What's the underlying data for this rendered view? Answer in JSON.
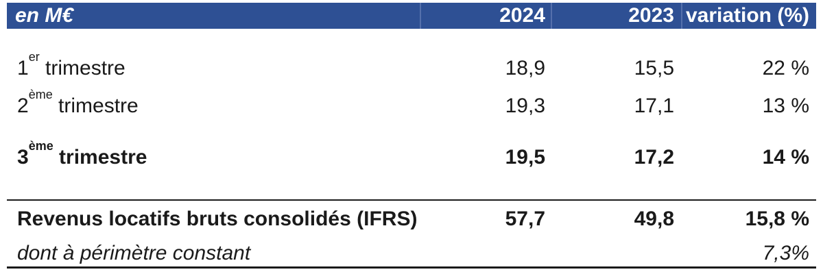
{
  "header": {
    "unit_label": "en M€",
    "col_2024": "2024",
    "col_2023": "2023",
    "col_variation": "variation (%)"
  },
  "rows": [
    {
      "label_num": "1",
      "label_sup": "er",
      "label_rest": " trimestre",
      "y2024": "18,9",
      "y2023": "15,5",
      "variation": "22 %"
    },
    {
      "label_num": "2",
      "label_sup": "ème",
      "label_rest": " trimestre",
      "y2024": "19,3",
      "y2023": "17,1",
      "variation": "13 %"
    },
    {
      "label_num": "3",
      "label_sup": "ème",
      "label_rest": " trimestre",
      "y2024": "19,5",
      "y2023": "17,2",
      "variation": "14 %"
    }
  ],
  "total_row": {
    "label": "Revenus locatifs bruts consolidés (IFRS)",
    "y2024": "57,7",
    "y2023": "49,8",
    "variation": "15,8 %"
  },
  "footer_row": {
    "label": "dont à périmètre constant",
    "variation": "7,3%"
  },
  "colors": {
    "header_bg": "#2E5094",
    "header_separator": "#5570AC",
    "header_text": "#FFFFFF",
    "body_text": "#1A1A1A",
    "rule": "#1A1A1A"
  }
}
